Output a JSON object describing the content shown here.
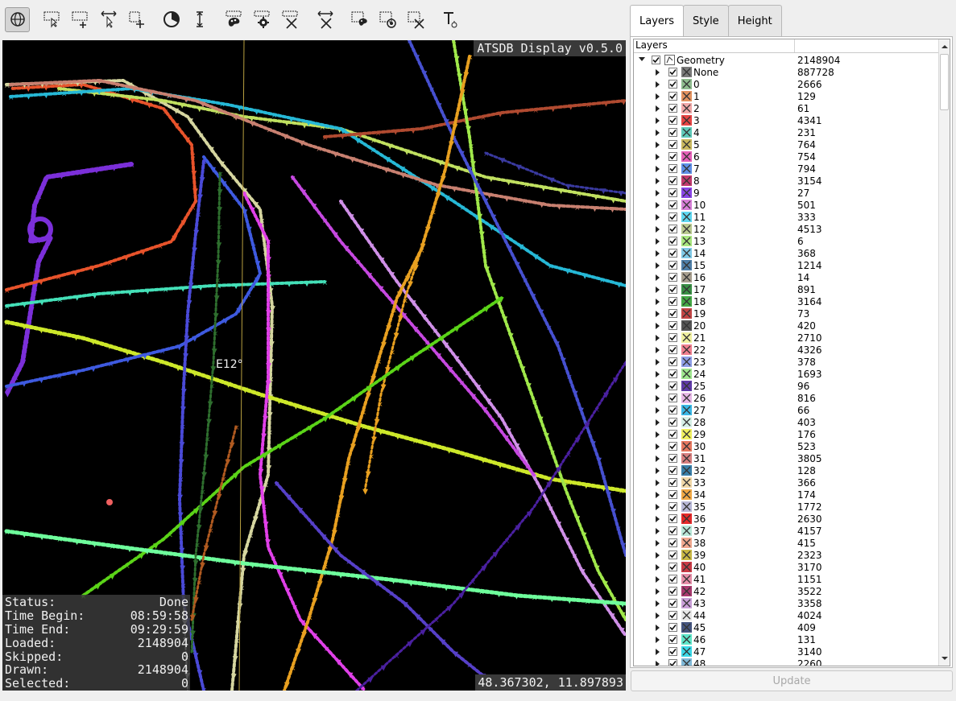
{
  "toolbar": {
    "buttons": [
      {
        "icon": "globe-navigate-icon",
        "active": true
      },
      {
        "icon": "select-pointer-icon"
      },
      {
        "icon": "add-selection-icon"
      },
      {
        "icon": "move-selection-icon"
      },
      {
        "icon": "rectangle-add-icon"
      },
      {
        "icon": "time-filter-icon"
      },
      {
        "icon": "height-filter-icon"
      },
      {
        "icon": "style-palette-icon"
      },
      {
        "icon": "settings-gear-icon"
      },
      {
        "icon": "delete-layer-icon"
      },
      {
        "icon": "clear-selection-icon"
      },
      {
        "icon": "selection-palette-icon"
      },
      {
        "icon": "selection-toggle-icon"
      },
      {
        "icon": "selection-clear-icon"
      },
      {
        "icon": "text-tool-icon"
      }
    ]
  },
  "map": {
    "title": "ATSDB Display v0.5.0",
    "coordinates": "48.367302, 11.897893",
    "grid_label": "E12°",
    "status": [
      {
        "label": "Status:",
        "value": "Done"
      },
      {
        "label": "Time Begin:",
        "value": "08:59:58"
      },
      {
        "label": "Time End:",
        "value": "09:29:59"
      },
      {
        "label": "Loaded:",
        "value": "2148904"
      },
      {
        "label": "Skipped:",
        "value": "0"
      },
      {
        "label": "Drawn:",
        "value": "2148904"
      },
      {
        "label": "Selected:",
        "value": "0"
      }
    ]
  },
  "panel": {
    "tabs": [
      {
        "label": "Layers",
        "active": true
      },
      {
        "label": "Style"
      },
      {
        "label": "Height"
      }
    ],
    "tree_header": [
      "Layers",
      ""
    ],
    "root": {
      "name": "Geometry",
      "count": "2148904"
    },
    "layers": [
      {
        "name": "None",
        "count": "887728",
        "color": "#7a7a7a"
      },
      {
        "name": "0",
        "count": "2666",
        "color": "#8fbc8f"
      },
      {
        "name": "1",
        "count": "129",
        "color": "#e3925f"
      },
      {
        "name": "2",
        "count": "61",
        "color": "#f0a8a8"
      },
      {
        "name": "3",
        "count": "4341",
        "color": "#e64545"
      },
      {
        "name": "4",
        "count": "231",
        "color": "#5fc9b8"
      },
      {
        "name": "5",
        "count": "764",
        "color": "#c9b85f"
      },
      {
        "name": "6",
        "count": "754",
        "color": "#e65fb8"
      },
      {
        "name": "7",
        "count": "794",
        "color": "#5f8fe6"
      },
      {
        "name": "8",
        "count": "3154",
        "color": "#c23a6e"
      },
      {
        "name": "9",
        "count": "27",
        "color": "#8a45e6"
      },
      {
        "name": "10",
        "count": "501",
        "color": "#d77fd7"
      },
      {
        "name": "11",
        "count": "333",
        "color": "#5fd7f0"
      },
      {
        "name": "12",
        "count": "4513",
        "color": "#b8c98f"
      },
      {
        "name": "13",
        "count": "6",
        "color": "#a8e67f"
      },
      {
        "name": "14",
        "count": "368",
        "color": "#7fc9e6"
      },
      {
        "name": "15",
        "count": "1214",
        "color": "#4f7fa8"
      },
      {
        "name": "16",
        "count": "14",
        "color": "#a89f8f"
      },
      {
        "name": "17",
        "count": "891",
        "color": "#3a8f45"
      },
      {
        "name": "18",
        "count": "3164",
        "color": "#45a845"
      },
      {
        "name": "19",
        "count": "73",
        "color": "#c24545"
      },
      {
        "name": "20",
        "count": "420",
        "color": "#555555"
      },
      {
        "name": "21",
        "count": "2710",
        "color": "#f0f0a0"
      },
      {
        "name": "22",
        "count": "4326",
        "color": "#f07f8f"
      },
      {
        "name": "23",
        "count": "378",
        "color": "#8f9fe6"
      },
      {
        "name": "24",
        "count": "1693",
        "color": "#9fe68f"
      },
      {
        "name": "25",
        "count": "96",
        "color": "#5f3aa8"
      },
      {
        "name": "26",
        "count": "816",
        "color": "#e6b8e6"
      },
      {
        "name": "27",
        "count": "66",
        "color": "#3ab8e6"
      },
      {
        "name": "28",
        "count": "403",
        "color": "#d7f0e6"
      },
      {
        "name": "29",
        "count": "176",
        "color": "#f0f05f"
      },
      {
        "name": "30",
        "count": "523",
        "color": "#e6785f"
      },
      {
        "name": "31",
        "count": "3805",
        "color": "#d77f7f"
      },
      {
        "name": "32",
        "count": "128",
        "color": "#3a7fa8"
      },
      {
        "name": "33",
        "count": "366",
        "color": "#f0d7a8"
      },
      {
        "name": "34",
        "count": "174",
        "color": "#f0a845"
      },
      {
        "name": "35",
        "count": "1772",
        "color": "#b8b8d7"
      },
      {
        "name": "36",
        "count": "2630",
        "color": "#e62a2a"
      },
      {
        "name": "37",
        "count": "4157",
        "color": "#b8e6d7"
      },
      {
        "name": "38",
        "count": "415",
        "color": "#f0a88f"
      },
      {
        "name": "39",
        "count": "2323",
        "color": "#c9b845"
      },
      {
        "name": "40",
        "count": "3170",
        "color": "#c93a45"
      },
      {
        "name": "41",
        "count": "1151",
        "color": "#e68fa8"
      },
      {
        "name": "42",
        "count": "3522",
        "color": "#a83a6e"
      },
      {
        "name": "43",
        "count": "3358",
        "color": "#c99fd7"
      },
      {
        "name": "44",
        "count": "4024",
        "color": "#e6e6e6"
      },
      {
        "name": "45",
        "count": "409",
        "color": "#45557f"
      },
      {
        "name": "46",
        "count": "131",
        "color": "#5fe6c9"
      },
      {
        "name": "47",
        "count": "3140",
        "color": "#3ad7e6"
      },
      {
        "name": "48",
        "count": "2260",
        "color": "#7fb8d7"
      }
    ],
    "update_label": "Update"
  }
}
